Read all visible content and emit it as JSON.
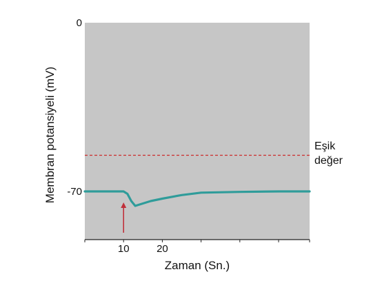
{
  "chart_data": {
    "type": "line",
    "title": "",
    "xlabel": "Zaman (Sn.)",
    "ylabel": "Membran potansiyeli (mV)",
    "xlim": [
      0,
      58
    ],
    "ylim": [
      -90,
      0
    ],
    "x_ticks": [
      {
        "value": 10,
        "label": "10"
      },
      {
        "value": 20,
        "label": "20"
      }
    ],
    "x_minor_ticks": [
      0,
      30,
      40,
      50,
      58
    ],
    "y_ticks": [
      {
        "value": 0,
        "label": "0"
      },
      {
        "value": -70,
        "label": "-70"
      }
    ],
    "threshold": {
      "value": -55,
      "label_line1": "Eşik",
      "label_line2": "değer",
      "color": "#cc2b2b"
    },
    "stimulus": {
      "x": 10,
      "color": "#c0303a"
    },
    "series": [
      {
        "name": "",
        "color": "#2f9c9a",
        "x": [
          0,
          5,
          10,
          11,
          12,
          13,
          15,
          17,
          20,
          25,
          30,
          40,
          50,
          58
        ],
        "y": [
          -70,
          -70,
          -70,
          -71,
          -74,
          -76,
          -75,
          -74,
          -73,
          -71.5,
          -70.5,
          -70.2,
          -70,
          -70
        ]
      }
    ],
    "plot_background": "#c6c6c6",
    "grid": false,
    "legend": "none"
  }
}
